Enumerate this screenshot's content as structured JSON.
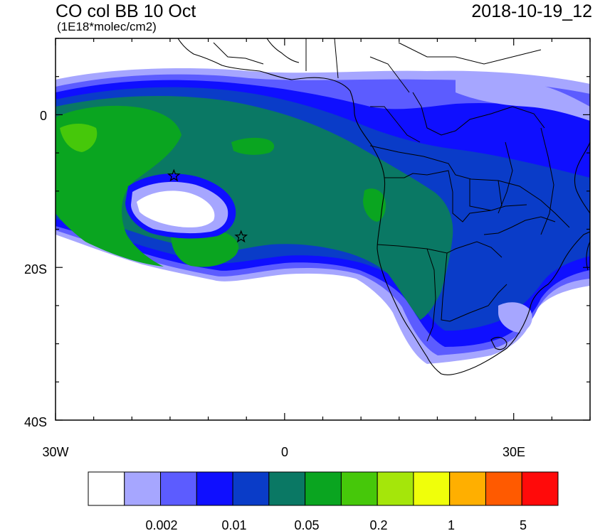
{
  "header": {
    "title": "CO col BB 10 Oct",
    "units": "(1E18*molec/cm2)",
    "datetime": "2018-10-19_12"
  },
  "axes": {
    "y_labels": [
      "0",
      "20S",
      "40S"
    ],
    "x_labels": [
      "30W",
      "0",
      "30E"
    ],
    "lon_range": [
      -30,
      40
    ],
    "lat_range": [
      -40,
      10
    ]
  },
  "colorbar": {
    "colors": [
      "#ffffff",
      "#a6a6ff",
      "#5c5cff",
      "#0f0fff",
      "#0a3cc8",
      "#0a7864",
      "#0aa520",
      "#46c80a",
      "#a5e60a",
      "#f0ff0a",
      "#ffaf00",
      "#ff5a00",
      "#ff0a0a"
    ],
    "labels": [
      "0.002",
      "0.01",
      "0.05",
      "0.2",
      "1",
      "5"
    ]
  },
  "markers": [
    {
      "name": "star-1",
      "lon": -14.5,
      "lat": -8
    },
    {
      "name": "star-2",
      "lon": -5.7,
      "lat": -16
    }
  ]
}
